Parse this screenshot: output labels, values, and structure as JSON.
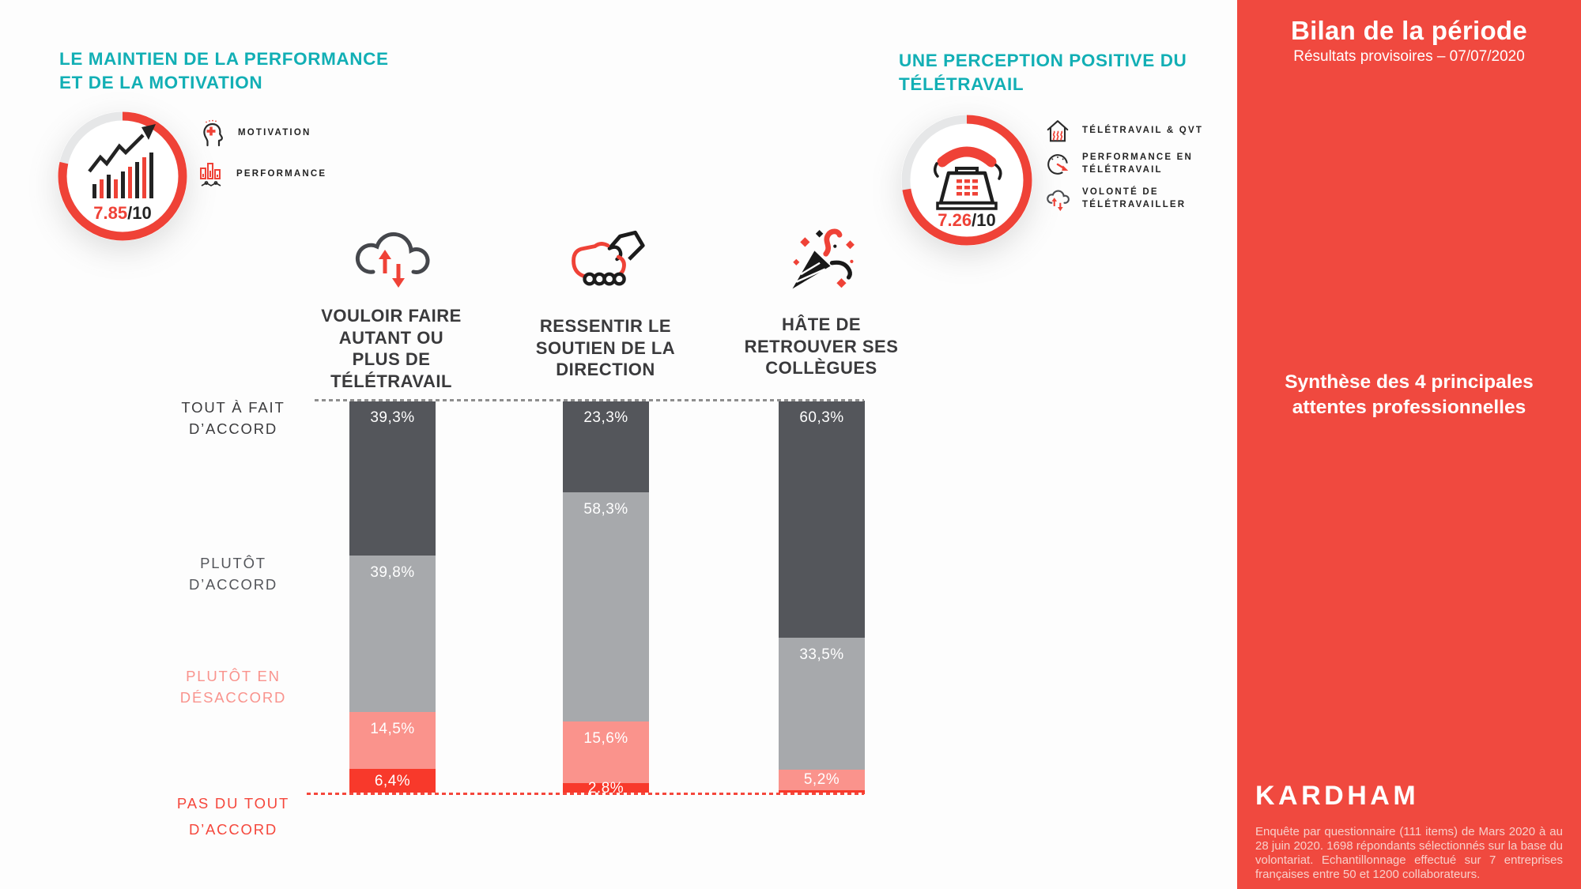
{
  "colors": {
    "teal": "#12AFB5",
    "accent_red": "#EF4237",
    "sidebar_red": "#F0493F",
    "segment_dark": "#54565B",
    "segment_gray": "#A7A9AC",
    "segment_salmon": "#FA938C",
    "segment_red": "#F8392B"
  },
  "left_panel": {
    "title": "LE MAINTIEN DE LA PERFORMANCE\nET DE LA MOTIVATION",
    "gauge": {
      "score": "7.85",
      "denominator": "/10"
    },
    "legend": [
      {
        "icon": "head-plus-icon",
        "label": "MOTIVATION"
      },
      {
        "icon": "performance-bars-icon",
        "label": "PERFORMANCE"
      }
    ]
  },
  "right_panel": {
    "title": "UNE PERCEPTION POSITIVE DU\nTÉLÉTRAVAIL",
    "gauge": {
      "score": "7.26",
      "denominator": "/10"
    },
    "legend": [
      {
        "icon": "house-heatwaves-icon",
        "label": "TÉLÉTRAVAIL & QVT"
      },
      {
        "icon": "speedometer-icon",
        "label": "PERFORMANCE EN\nTÉLÉTRAVAIL"
      },
      {
        "icon": "cloud-updown-icon",
        "label": "VOLONTÉ DE\nTÉLÉTRAVAILLER"
      }
    ]
  },
  "chart_data": {
    "type": "bar",
    "stacked": true,
    "unit": "percent",
    "ylim": [
      0,
      100
    ],
    "grid": false,
    "categories": [
      "VOULOIR FAIRE\nAUTANT OU\nPLUS DE\nTÉLÉTRAVAIL",
      "RESSENTIR LE\nSOUTIEN DE LA\nDIRECTION",
      "HÂTE DE\nRETROUVER SES\nCOLLÈGUES"
    ],
    "category_icons": [
      "cloud-updown-icon",
      "handshake-icon",
      "party-popper-icon"
    ],
    "row_labels": [
      {
        "label": "TOUT À FAIT\nD’ACCORD",
        "color": "#3B3B3D"
      },
      {
        "label": "PLUTÔT\nD’ACCORD",
        "color": "#54565B"
      },
      {
        "label": "PLUTÔT EN\nDÉSACCORD",
        "color": "#F9938D"
      },
      {
        "label": "PAS DU TOUT\nD’ACCORD",
        "color": "#F5473C"
      }
    ],
    "series": [
      {
        "name": "Tout à fait d’accord",
        "color": "#54565B",
        "values": [
          39.3,
          23.3,
          60.3
        ],
        "labels": [
          "39,3%",
          "23,3%",
          "60,3%"
        ]
      },
      {
        "name": "Plutôt d’accord",
        "color": "#A7A9AC",
        "values": [
          39.8,
          58.3,
          33.5
        ],
        "labels": [
          "39,8%",
          "58,3%",
          "33,5%"
        ]
      },
      {
        "name": "Plutôt en désaccord",
        "color": "#FA938C",
        "values": [
          14.5,
          15.6,
          5.2
        ],
        "labels": [
          "14,5%",
          "15,6%",
          "5,2%"
        ]
      },
      {
        "name": "Pas du tout d’accord",
        "color": "#F8392B",
        "values": [
          6.4,
          2.8,
          1.0
        ],
        "labels": [
          "6,4%",
          "2,8%",
          ""
        ]
      }
    ]
  },
  "sidebar": {
    "title": "Bilan de la période",
    "subtitle": "Résultats provisoires – 07/07/2020",
    "synthesis": "Synthèse des 4 principales\nattentes professionnelles",
    "brand": "KARDHAM",
    "footnote": "Enquête par questionnaire (111 items) de Mars 2020 à au 28 juin 2020. 1698 répondants sélectionnés sur la base du volontariat. Echantillonnage effectué sur 7 entreprises françaises entre 50 et 1200 collaborateurs."
  }
}
